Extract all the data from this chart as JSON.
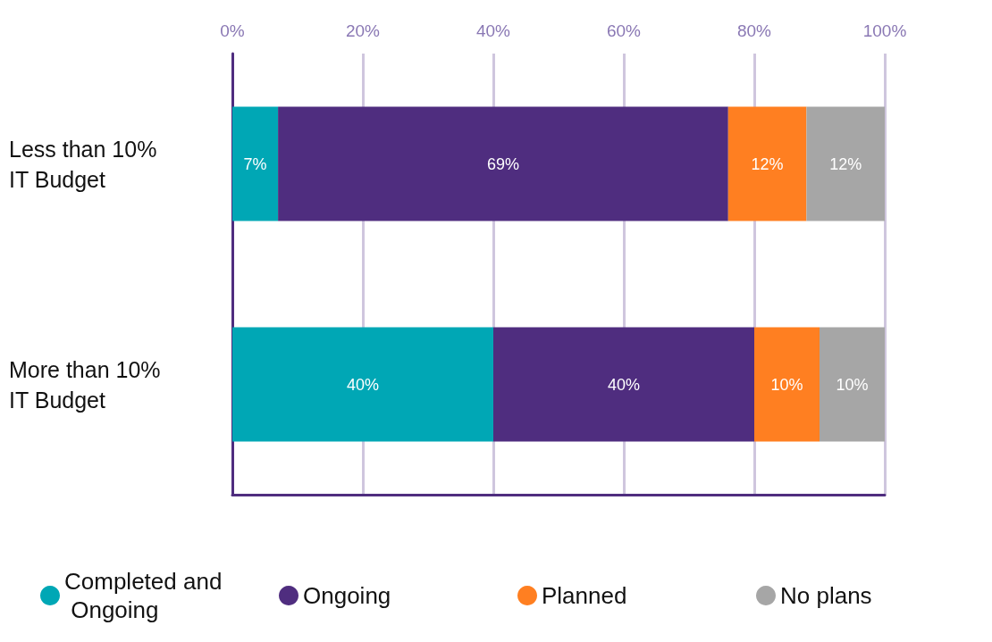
{
  "chart_data": {
    "type": "bar",
    "orientation": "horizontal",
    "stacked": true,
    "categories": [
      "Less than 10% IT Budget",
      "More than 10% IT Budget"
    ],
    "series": [
      {
        "name": "Completed and Ongoing",
        "color": "#00a7b5",
        "values": [
          7,
          40
        ]
      },
      {
        "name": "Ongoing",
        "color": "#4f2d7f",
        "values": [
          69,
          40
        ]
      },
      {
        "name": "Planned",
        "color": "#ff7f21",
        "values": [
          12,
          10
        ]
      },
      {
        "name": "No plans",
        "color": "#a6a6a6",
        "values": [
          12,
          10
        ]
      }
    ],
    "xlim": [
      0,
      100
    ],
    "xticks": [
      {
        "value": 0,
        "label": "0%"
      },
      {
        "value": 20,
        "label": "20%"
      },
      {
        "value": 40,
        "label": "40%"
      },
      {
        "value": 60,
        "label": "60%"
      },
      {
        "value": 80,
        "label": "80%"
      },
      {
        "value": 100,
        "label": "100%"
      }
    ],
    "value_labels": [
      [
        "7%",
        "40%"
      ],
      [
        "69%",
        "40%"
      ],
      [
        "12%",
        "10%"
      ],
      [
        "12%",
        "10%"
      ]
    ],
    "grid": "x",
    "legend": "bottom"
  }
}
